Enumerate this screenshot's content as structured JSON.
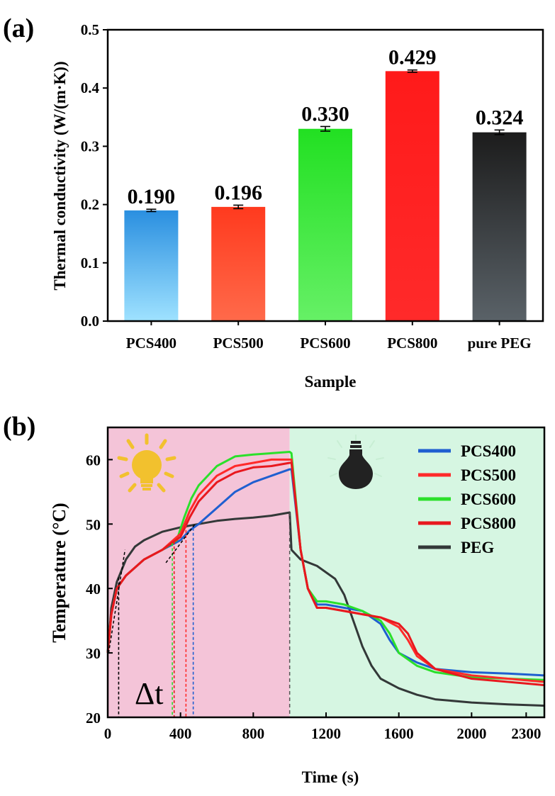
{
  "chart_data": [
    {
      "panel": "(a)",
      "type": "bar",
      "xlabel": "Sample",
      "ylabel": "Thermal conductivity (W/(m·K))",
      "ylim": [
        0,
        0.5
      ],
      "yticks": [
        "0.0",
        "0.1",
        "0.2",
        "0.3",
        "0.4",
        "0.5"
      ],
      "categories": [
        "PCS400",
        "PCS500",
        "PCS600",
        "PCS800",
        "pure PEG"
      ],
      "values": [
        0.19,
        0.196,
        0.33,
        0.429,
        0.324
      ],
      "errors": [
        0.002,
        0.003,
        0.004,
        0.002,
        0.004
      ],
      "value_labels": [
        "0.190",
        "0.196",
        "0.330",
        "0.429",
        "0.324"
      ],
      "colors": [
        [
          "#2a8fe0",
          "#9fe2ff"
        ],
        [
          "#ff3a1e",
          "#ff6a4a"
        ],
        [
          "#22e022",
          "#66f066"
        ],
        [
          "#ff1a1a",
          "#ff2a2a"
        ],
        [
          "#1c1c1c",
          "#5a6268"
        ]
      ]
    },
    {
      "panel": "(b)",
      "type": "line",
      "xlabel": "Time (s)",
      "ylabel": "Temperature (°C)",
      "xlim": [
        0,
        2400
      ],
      "ylim": [
        20,
        65
      ],
      "xticks": [
        "0",
        "400",
        "800",
        "1200",
        "1600",
        "2000",
        "2300"
      ],
      "xtick_values": [
        0,
        400,
        800,
        1200,
        1600,
        2000,
        2300
      ],
      "yticks": [
        "20",
        "30",
        "40",
        "50",
        "60"
      ],
      "light_off_time": 1000,
      "annotation": "Δt",
      "legend_position": "top-right",
      "series": [
        {
          "name": "PCS400",
          "color": "#1f5fd0",
          "x": [
            0,
            20,
            50,
            100,
            200,
            300,
            400,
            450,
            500,
            600,
            700,
            800,
            900,
            1000,
            1010,
            1060,
            1100,
            1150,
            1200,
            1300,
            1400,
            1500,
            1550,
            1600,
            1700,
            1800,
            2000,
            2200,
            2400
          ],
          "y": [
            30,
            36,
            40,
            42,
            44.5,
            46,
            47.5,
            49,
            50,
            52.5,
            55,
            56.5,
            57.5,
            58.5,
            58.5,
            46,
            40,
            37.5,
            37.5,
            37,
            36.5,
            34.5,
            32,
            30,
            28.5,
            27.5,
            27,
            26.8,
            26.5
          ]
        },
        {
          "name": "PCS500",
          "color": "#ff2a2a",
          "x": [
            0,
            20,
            50,
            100,
            200,
            300,
            400,
            450,
            500,
            600,
            700,
            800,
            900,
            1000,
            1010,
            1060,
            1100,
            1150,
            1200,
            1300,
            1400,
            1500,
            1600,
            1650,
            1700,
            1800,
            2000,
            2200,
            2400
          ],
          "y": [
            30,
            36,
            40,
            42,
            44.5,
            46,
            48.5,
            52,
            54.5,
            57.5,
            59,
            59.5,
            60,
            60,
            60,
            46,
            40,
            37,
            37,
            36.5,
            36,
            35.5,
            34,
            32,
            29.5,
            27.5,
            26.5,
            26,
            25.5
          ]
        },
        {
          "name": "PCS600",
          "color": "#2be02b",
          "x": [
            0,
            20,
            50,
            100,
            200,
            300,
            380,
            420,
            460,
            500,
            600,
            700,
            800,
            900,
            1000,
            1010,
            1060,
            1100,
            1150,
            1200,
            1300,
            1400,
            1500,
            1550,
            1600,
            1700,
            1800,
            2000,
            2200,
            2400
          ],
          "y": [
            30,
            36,
            40,
            42,
            44.5,
            46,
            47.5,
            51,
            54,
            56,
            59,
            60.5,
            60.8,
            61,
            61.2,
            61,
            46,
            40,
            38,
            38,
            37.5,
            36.5,
            35,
            33,
            30,
            28,
            27,
            26.2,
            26,
            25.8
          ]
        },
        {
          "name": "PCS800",
          "color": "#e8181e",
          "x": [
            0,
            20,
            50,
            100,
            200,
            300,
            400,
            450,
            500,
            600,
            700,
            800,
            900,
            1000,
            1010,
            1060,
            1100,
            1150,
            1200,
            1300,
            1400,
            1500,
            1600,
            1650,
            1700,
            1800,
            2000,
            2200,
            2400
          ],
          "y": [
            30,
            36,
            40,
            42,
            44.5,
            46,
            48,
            51,
            53.5,
            56.5,
            58,
            58.8,
            59,
            59.5,
            59.5,
            46,
            40,
            37,
            37,
            36.5,
            36,
            35.5,
            34.5,
            33,
            30,
            27.5,
            26,
            25.5,
            25
          ]
        },
        {
          "name": "PEG",
          "color": "#333838",
          "x": [
            0,
            20,
            50,
            100,
            150,
            200,
            300,
            400,
            500,
            600,
            700,
            800,
            900,
            1000,
            1010,
            1060,
            1150,
            1250,
            1300,
            1350,
            1400,
            1450,
            1500,
            1600,
            1700,
            1800,
            2000,
            2200,
            2400
          ],
          "y": [
            30,
            37,
            41,
            44.5,
            46.5,
            47.5,
            48.8,
            49.5,
            50,
            50.5,
            50.8,
            51,
            51.3,
            51.8,
            46,
            44.5,
            43.5,
            41.5,
            39,
            35,
            31,
            28,
            26,
            24.5,
            23.5,
            22.8,
            22.3,
            22,
            21.8
          ]
        }
      ],
      "onset_markers": [
        {
          "series": "PEG",
          "time": 60,
          "color": "#000000"
        },
        {
          "series": "PCS600",
          "time": 355,
          "color": "#2be02b"
        },
        {
          "series": "PCS800",
          "time": 365,
          "color": "#e8181e"
        },
        {
          "series": "PCS500",
          "time": 430,
          "color": "#ff2a2a"
        },
        {
          "series": "PCS400",
          "time": 470,
          "color": "#1f5fd0"
        }
      ],
      "light_on_color": "#f4c4d8",
      "light_off_color": "#d6f6e2"
    }
  ]
}
